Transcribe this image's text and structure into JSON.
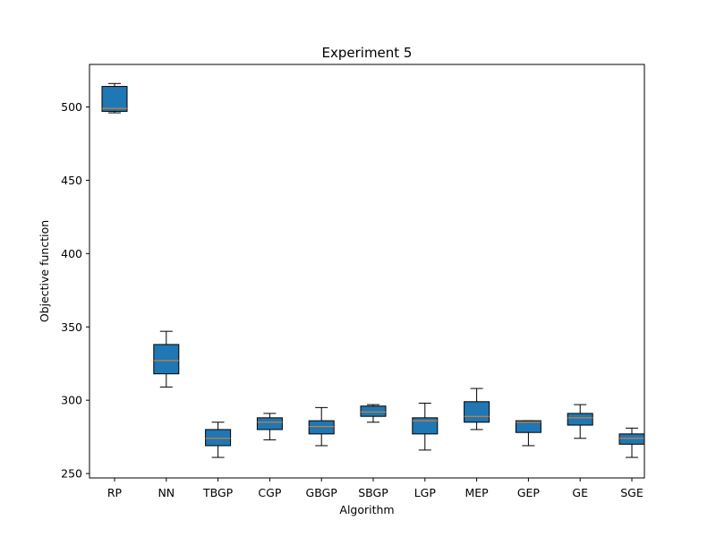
{
  "chart_data": {
    "type": "boxplot",
    "title": "Experiment 5",
    "xlabel": "Algorithm",
    "ylabel": "Objective function",
    "ylim": [
      247,
      529
    ],
    "yticks": [
      250,
      300,
      350,
      400,
      450,
      500
    ],
    "grid": false,
    "categories": [
      "RP",
      "NN",
      "TBGP",
      "CGP",
      "GBGP",
      "SBGP",
      "LGP",
      "MEP",
      "GEP",
      "GE",
      "SGE"
    ],
    "boxes": [
      {
        "label": "RP",
        "whisker_low": 496,
        "q1": 497,
        "median": 499,
        "q3": 514,
        "whisker_high": 516
      },
      {
        "label": "NN",
        "whisker_low": 309,
        "q1": 318,
        "median": 327,
        "q3": 338,
        "whisker_high": 347
      },
      {
        "label": "TBGP",
        "whisker_low": 261,
        "q1": 269,
        "median": 274,
        "q3": 280,
        "whisker_high": 285
      },
      {
        "label": "CGP",
        "whisker_low": 273,
        "q1": 280,
        "median": 285,
        "q3": 288,
        "whisker_high": 291
      },
      {
        "label": "GBGP",
        "whisker_low": 269,
        "q1": 277,
        "median": 282,
        "q3": 286,
        "whisker_high": 295
      },
      {
        "label": "SBGP",
        "whisker_low": 285,
        "q1": 289,
        "median": 292,
        "q3": 296,
        "whisker_high": 297
      },
      {
        "label": "LGP",
        "whisker_low": 266,
        "q1": 277,
        "median": 286,
        "q3": 288,
        "whisker_high": 298
      },
      {
        "label": "MEP",
        "whisker_low": 280,
        "q1": 285,
        "median": 289,
        "q3": 299,
        "whisker_high": 308
      },
      {
        "label": "GEP",
        "whisker_low": 269,
        "q1": 278,
        "median": 285,
        "q3": 286,
        "whisker_high": 286
      },
      {
        "label": "GE",
        "whisker_low": 274,
        "q1": 283,
        "median": 288,
        "q3": 291,
        "whisker_high": 297
      },
      {
        "label": "SGE",
        "whisker_low": 261,
        "q1": 270,
        "median": 274,
        "q3": 277,
        "whisker_high": 281
      }
    ],
    "colors": {
      "box_fill": "#1f77b4",
      "median": "#ff7f0e",
      "edge": "#000000"
    }
  }
}
